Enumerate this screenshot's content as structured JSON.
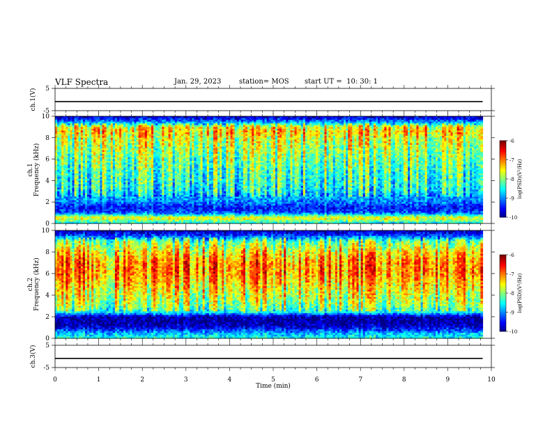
{
  "header": {
    "title": "VLF Spectra",
    "date": "Jan. 29, 2023",
    "station": "station= MOS",
    "start_ut": "start UT =  10: 30: 1"
  },
  "chart_data": [
    {
      "type": "line",
      "title": "",
      "ylabel": "ch.1(V)",
      "ylim": [
        -5,
        5
      ],
      "yticks": [
        "5",
        "-5"
      ],
      "series": [
        {
          "values": [
            -0.9,
            -0.9,
            -0.9,
            -0.9,
            -0.9,
            -0.9,
            -0.9,
            -0.9,
            -0.9,
            -0.9,
            -0.9
          ]
        }
      ],
      "x": [
        0,
        1,
        2,
        3,
        4,
        5,
        6,
        7,
        8,
        9,
        9.8
      ],
      "xlim": [
        0,
        10
      ]
    },
    {
      "type": "heatmap",
      "title": "",
      "ylabel": "ch.1\nFrequency (kHz)",
      "ylim": [
        0,
        10
      ],
      "yticks": [
        "0",
        "2",
        "4",
        "6",
        "8",
        "10"
      ],
      "xlim": [
        0,
        10
      ],
      "data_end_min": 9.8,
      "colorbar": {
        "label": "log(PSD)(V²/Hz)",
        "ticks": [
          "-6",
          "-7",
          "-8",
          "-9",
          "-10"
        ],
        "range": [
          -10,
          -6
        ]
      },
      "band_profile_khz": [
        0,
        0.5,
        1,
        1.5,
        2,
        2.5,
        3,
        4,
        5,
        6,
        7,
        8,
        8.5,
        9,
        9.5,
        10
      ],
      "band_profile_logpsd": [
        -8.6,
        -7.4,
        -9.2,
        -9.4,
        -9.0,
        -8.8,
        -8.5,
        -8.3,
        -8.2,
        -8.0,
        -7.8,
        -7.6,
        -7.3,
        -7.5,
        -9.0,
        -9.8
      ]
    },
    {
      "type": "heatmap",
      "title": "",
      "ylabel": "ch.2\nFrequency (kHz)",
      "ylim": [
        0,
        10
      ],
      "yticks": [
        "0",
        "2",
        "4",
        "6",
        "8",
        "10"
      ],
      "xlim": [
        0,
        10
      ],
      "data_end_min": 9.8,
      "colorbar": {
        "label": "log(PSD)(V²/Hz)",
        "ticks": [
          "-6",
          "-7",
          "-8",
          "-9",
          "-10"
        ],
        "range": [
          -10,
          -6
        ]
      },
      "band_profile_khz": [
        0,
        0.5,
        1,
        1.5,
        2,
        2.5,
        3,
        4,
        5,
        6,
        7,
        8,
        8.5,
        9,
        9.5,
        10
      ],
      "band_profile_logpsd": [
        -8.4,
        -8.8,
        -9.6,
        -9.9,
        -9.8,
        -8.2,
        -7.9,
        -7.6,
        -7.3,
        -7.0,
        -7.0,
        -7.4,
        -7.7,
        -8.0,
        -9.2,
        -9.9
      ]
    },
    {
      "type": "line",
      "title": "",
      "ylabel": "ch.3(V)",
      "ylim": [
        -5,
        5
      ],
      "yticks": [
        "5",
        "-5"
      ],
      "series": [
        {
          "values": [
            -0.9,
            -0.9,
            -0.9,
            -0.9,
            -0.9,
            -0.9,
            -0.9,
            -0.9,
            -0.9,
            -0.9,
            -0.9
          ]
        }
      ],
      "x": [
        0,
        1,
        2,
        3,
        4,
        5,
        6,
        7,
        8,
        9,
        9.8
      ],
      "xlim": [
        0,
        10
      ],
      "xlabel": "Time  (min)",
      "xticks": [
        "0",
        "1",
        "2",
        "3",
        "4",
        "5",
        "6",
        "7",
        "8",
        "9",
        "10"
      ]
    }
  ]
}
